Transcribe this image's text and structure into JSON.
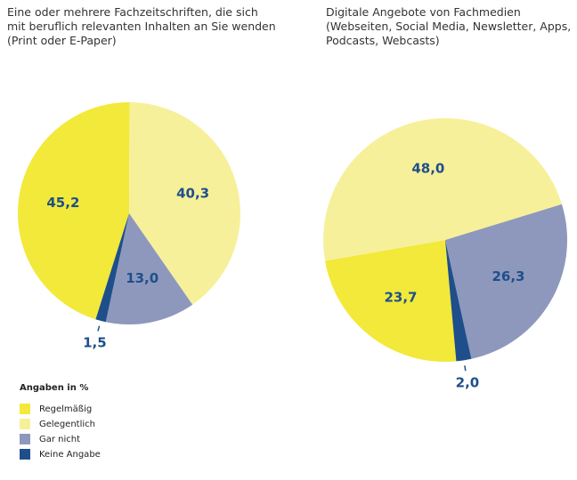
{
  "legend_title": "Angaben in %",
  "categories": [
    "Regelmäßig",
    "Gelegentlich",
    "Gar nicht",
    "Keine Angabe"
  ],
  "colors": [
    "#f2e93a",
    "#f7f09a",
    "#8e98bd",
    "#1f4f8a"
  ],
  "chart_data": [
    {
      "type": "pie",
      "title": "Eine oder mehrere Fachzeitschriften, die sich\nmit beruflich relevanten Inhalten an Sie wenden\n(Print oder E-Paper)",
      "values": [
        45.2,
        40.3,
        13.0,
        1.5
      ],
      "value_labels": [
        "45,2",
        "40,3",
        "13,0",
        "1,5"
      ]
    },
    {
      "type": "pie",
      "title": "Digitale Angebote von Fachmedien\n(Webseiten, Social Media, Newsletter, Apps,\nPodcasts, Webcasts)",
      "values": [
        23.7,
        48.0,
        26.3,
        2.0
      ],
      "value_labels": [
        "23,7",
        "48,0",
        "26,3",
        "2,0"
      ]
    }
  ]
}
